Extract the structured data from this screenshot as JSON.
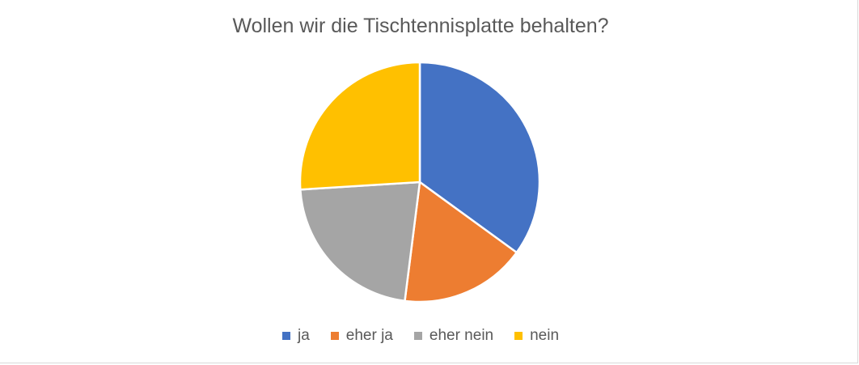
{
  "chart_data": {
    "type": "pie",
    "title": "Wollen wir die Tischtennisplatte behalten?",
    "categories": [
      "ja",
      "eher ja",
      "eher nein",
      "nein"
    ],
    "values": [
      35,
      17,
      22,
      26
    ],
    "colors": [
      "#4472C4",
      "#ED7D31",
      "#A5A5A5",
      "#FFC000"
    ],
    "legend_position": "bottom",
    "start_angle": "12 o'clock",
    "direction": "clockwise"
  }
}
